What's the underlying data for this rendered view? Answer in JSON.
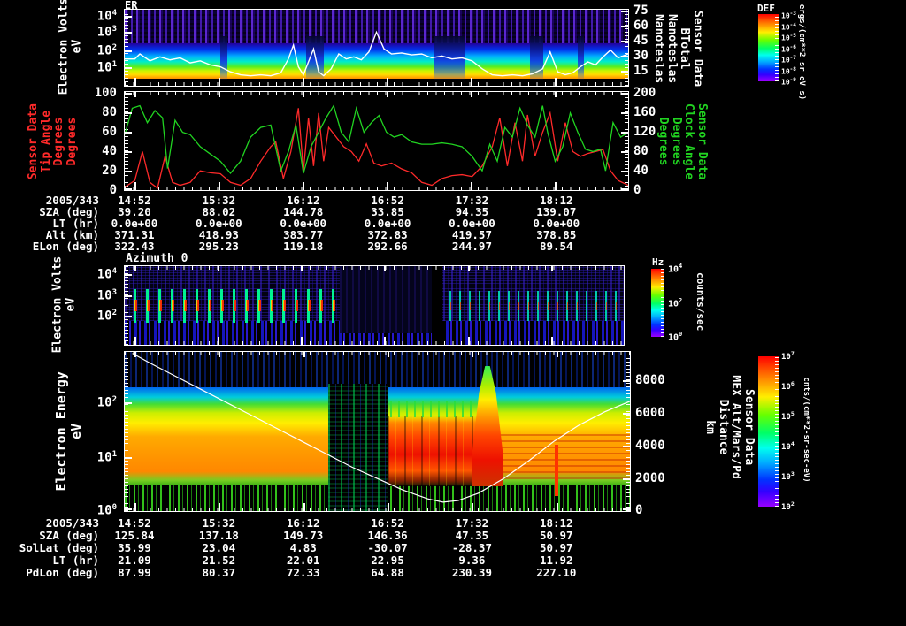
{
  "header": {
    "title": "ER"
  },
  "colors": {
    "accent_red": "#ff2a2a",
    "accent_green": "#21d421",
    "white": "#ffffff"
  },
  "panel1": {
    "ylabel_lines": [
      "Electron Volts",
      "eV"
    ],
    "yticks": [
      {
        "m": "10",
        "e": "4"
      },
      {
        "m": "10",
        "e": "3"
      },
      {
        "m": "10",
        "e": "2"
      },
      {
        "m": "10",
        "e": "1"
      }
    ],
    "right_ticks": [
      "75",
      "60",
      "45",
      "30",
      "15"
    ],
    "right_label_lines": [
      "Sensor Data",
      "BTotal",
      "Nanoteslas",
      "Nanoteslas"
    ],
    "colorbar": {
      "title": "DEF",
      "ticks": [
        {
          "m": "10",
          "e": "-3"
        },
        {
          "m": "10",
          "e": "-4"
        },
        {
          "m": "10",
          "e": "-5"
        },
        {
          "m": "10",
          "e": "-6"
        },
        {
          "m": "10",
          "e": "-7"
        },
        {
          "m": "10",
          "e": "-8"
        },
        {
          "m": "10",
          "e": "-9"
        }
      ],
      "unit": "ergs/(cm**2 sr eV s)"
    }
  },
  "panel2": {
    "left_ticks": [
      "100",
      "80",
      "60",
      "40",
      "20",
      "0"
    ],
    "left_label_lines": [
      "Sensor Data",
      "Tip Angle",
      "Degrees",
      "Degrees"
    ],
    "right_ticks": [
      "200",
      "160",
      "120",
      "80",
      "40",
      "0"
    ],
    "right_label_lines": [
      "Sensor Data",
      "Clock Angle",
      "Degrees",
      "Degrees"
    ]
  },
  "annotation1": {
    "date": "2005/343",
    "times": [
      "14:52",
      "15:32",
      "16:12",
      "16:52",
      "17:32",
      "18:12"
    ],
    "rows": [
      {
        "label": "SZA (deg)",
        "values": [
          "39.20",
          "88.02",
          "144.78",
          "33.85",
          "94.35",
          "139.07"
        ]
      },
      {
        "label": "LT (hr)",
        "values": [
          "0.0e+00",
          "0.0e+00",
          "0.0e+00",
          "0.0e+00",
          "0.0e+00",
          "0.0e+00"
        ]
      },
      {
        "label": "Alt (km)",
        "values": [
          "371.31",
          "418.93",
          "383.77",
          "372.83",
          "419.57",
          "378.85"
        ]
      },
      {
        "label": "ELon (deg)",
        "values": [
          "322.43",
          "295.23",
          "119.18",
          "292.66",
          "244.97",
          "89.54"
        ]
      }
    ]
  },
  "panel3": {
    "title": "Azimuth 0",
    "ylabel_lines": [
      "Electron Volts",
      "eV"
    ],
    "yticks": [
      {
        "m": "10",
        "e": "4"
      },
      {
        "m": "10",
        "e": "3"
      },
      {
        "m": "10",
        "e": "2"
      }
    ],
    "colorbar": {
      "title": "Hz",
      "ticks": [
        {
          "m": "10",
          "e": "4"
        },
        {
          "m": "10",
          "e": "2"
        },
        {
          "m": "10",
          "e": "0"
        }
      ],
      "unit": "counts/sec"
    }
  },
  "panel4": {
    "ylabel_lines": [
      "Electron Energy",
      "eV"
    ],
    "yticks": [
      {
        "m": "10",
        "e": "2"
      },
      {
        "m": "10",
        "e": "1"
      },
      {
        "m": "10",
        "e": "0"
      }
    ],
    "right_ticks": [
      "8000",
      "6000",
      "4000",
      "2000",
      "0"
    ],
    "right_label_lines": [
      "Sensor Data",
      "MEX Alt/Mars/Pd",
      "Distance",
      "km"
    ],
    "colorbar": {
      "ticks": [
        {
          "m": "10",
          "e": "7"
        },
        {
          "m": "10",
          "e": "6"
        },
        {
          "m": "10",
          "e": "5"
        },
        {
          "m": "10",
          "e": "4"
        },
        {
          "m": "10",
          "e": "3"
        },
        {
          "m": "10",
          "e": "2"
        }
      ],
      "unit": "cnts/(cm**2-sr-sec-eV)"
    }
  },
  "annotation2": {
    "date": "2005/343",
    "times": [
      "14:52",
      "15:32",
      "16:12",
      "16:52",
      "17:32",
      "18:12"
    ],
    "rows": [
      {
        "label": "SZA (deg)",
        "values": [
          "125.84",
          "137.18",
          "149.73",
          "146.36",
          "47.35",
          "50.97"
        ]
      },
      {
        "label": "SolLat (deg)",
        "values": [
          "35.99",
          "23.04",
          "4.83",
          "-30.07",
          "-28.37",
          "50.97"
        ]
      },
      {
        "label": "LT (hr)",
        "values": [
          "21.09",
          "21.52",
          "22.01",
          "22.95",
          "9.36",
          "11.92"
        ]
      },
      {
        "label": "PdLon (deg)",
        "values": [
          "87.99",
          "80.37",
          "72.33",
          "64.88",
          "230.39",
          "227.10"
        ]
      }
    ]
  },
  "chart_data": [
    {
      "type": "heatmap",
      "title": "ER",
      "ylabel": "Electron Volts eV",
      "yscale": "log",
      "ylim": [
        10,
        10000
      ],
      "xticklabels": [
        "14:52",
        "15:32",
        "16:12",
        "16:52",
        "17:32",
        "18:12"
      ],
      "right_axis": {
        "label": "Sensor Data BTotal Nanoteslas",
        "range": [
          0,
          75
        ],
        "ticks": [
          15,
          30,
          45,
          60,
          75
        ]
      },
      "colorbar": {
        "title": "DEF",
        "unit": "ergs/(cm**2 sr eV s)",
        "range": [
          "1e-9",
          "1e-3"
        ]
      },
      "description": "Purple noise speckle 300-10000 eV; smooth cyan-green-yellow-orange flux bands 10-200 eV; black below 10 eV; blue dropouts near 16:20, 17:20, 18:05",
      "overlay": {
        "name": "BTotal (nT)",
        "color": "#ffffff",
        "x": [
          0,
          0.02,
          0.03,
          0.05,
          0.07,
          0.09,
          0.11,
          0.13,
          0.15,
          0.17,
          0.19,
          0.21,
          0.23,
          0.25,
          0.27,
          0.29,
          0.31,
          0.325,
          0.335,
          0.345,
          0.355,
          0.365,
          0.375,
          0.385,
          0.395,
          0.41,
          0.425,
          0.44,
          0.455,
          0.47,
          0.485,
          0.5,
          0.515,
          0.53,
          0.55,
          0.57,
          0.59,
          0.61,
          0.63,
          0.65,
          0.67,
          0.69,
          0.71,
          0.73,
          0.75,
          0.77,
          0.79,
          0.81,
          0.83,
          0.845,
          0.86,
          0.875,
          0.89,
          0.905,
          0.92,
          0.935,
          0.95,
          0.965,
          0.98,
          1
        ],
        "values": [
          28,
          28,
          33,
          26,
          30,
          27,
          29,
          24,
          26,
          22,
          20,
          15,
          12,
          11,
          12,
          11,
          14,
          28,
          42,
          20,
          12,
          25,
          38,
          15,
          11,
          18,
          33,
          28,
          30,
          27,
          35,
          55,
          38,
          33,
          34,
          32,
          33,
          29,
          31,
          28,
          29,
          26,
          18,
          12,
          11,
          12,
          11,
          13,
          18,
          35,
          15,
          12,
          14,
          20,
          25,
          22,
          30,
          37,
          29,
          33
        ]
      }
    },
    {
      "type": "line",
      "xticklabels": [
        "14:52",
        "15:32",
        "16:12",
        "16:52",
        "17:32",
        "18:12"
      ],
      "series": [
        {
          "name": "Sensor Data Tip Angle (Degrees)",
          "color": "#ff2a2a",
          "axis_range": [
            0,
            100
          ],
          "x": [
            0,
            0.02,
            0.035,
            0.05,
            0.065,
            0.08,
            0.095,
            0.11,
            0.13,
            0.15,
            0.17,
            0.19,
            0.21,
            0.23,
            0.25,
            0.27,
            0.29,
            0.3,
            0.315,
            0.33,
            0.345,
            0.355,
            0.365,
            0.375,
            0.385,
            0.395,
            0.405,
            0.42,
            0.435,
            0.45,
            0.465,
            0.48,
            0.495,
            0.51,
            0.53,
            0.55,
            0.57,
            0.59,
            0.61,
            0.63,
            0.65,
            0.67,
            0.69,
            0.71,
            0.73,
            0.745,
            0.76,
            0.775,
            0.79,
            0.8,
            0.815,
            0.83,
            0.845,
            0.86,
            0.875,
            0.89,
            0.905,
            0.92,
            0.935,
            0.95,
            0.965,
            0.98,
            1
          ],
          "values": [
            3,
            10,
            40,
            8,
            2,
            35,
            8,
            5,
            8,
            20,
            18,
            17,
            8,
            5,
            12,
            30,
            45,
            50,
            12,
            40,
            85,
            20,
            75,
            25,
            80,
            30,
            65,
            55,
            45,
            40,
            30,
            48,
            28,
            25,
            28,
            22,
            18,
            8,
            5,
            12,
            15,
            16,
            14,
            25,
            45,
            75,
            25,
            70,
            30,
            78,
            35,
            60,
            80,
            30,
            70,
            40,
            35,
            38,
            40,
            42,
            20,
            10,
            5
          ]
        },
        {
          "name": "Sensor Data Clock Angle (Degrees)",
          "color": "#21d421",
          "axis_range": [
            0,
            200
          ],
          "x": [
            0,
            0.015,
            0.03,
            0.045,
            0.06,
            0.075,
            0.085,
            0.1,
            0.115,
            0.13,
            0.15,
            0.17,
            0.19,
            0.21,
            0.23,
            0.25,
            0.27,
            0.29,
            0.31,
            0.325,
            0.34,
            0.355,
            0.37,
            0.385,
            0.4,
            0.415,
            0.43,
            0.445,
            0.46,
            0.475,
            0.49,
            0.505,
            0.52,
            0.535,
            0.55,
            0.57,
            0.59,
            0.61,
            0.63,
            0.65,
            0.67,
            0.69,
            0.71,
            0.725,
            0.74,
            0.755,
            0.77,
            0.785,
            0.8,
            0.815,
            0.83,
            0.84,
            0.855,
            0.87,
            0.885,
            0.9,
            0.915,
            0.93,
            0.945,
            0.955,
            0.97,
            0.985,
            1
          ],
          "values": [
            115,
            170,
            175,
            140,
            165,
            150,
            45,
            145,
            120,
            115,
            90,
            75,
            60,
            35,
            60,
            110,
            130,
            135,
            40,
            80,
            135,
            35,
            90,
            120,
            150,
            175,
            120,
            100,
            170,
            120,
            140,
            155,
            120,
            110,
            115,
            100,
            95,
            95,
            98,
            95,
            90,
            70,
            40,
            95,
            60,
            130,
            110,
            170,
            135,
            110,
            175,
            120,
            60,
            90,
            160,
            120,
            85,
            80,
            85,
            40,
            140,
            110,
            120
          ]
        }
      ]
    },
    {
      "type": "heatmap",
      "title": "Azimuth 0",
      "ylabel": "Electron Volts eV",
      "yscale": "log",
      "ylim": [
        50,
        15000
      ],
      "xticklabels": [
        "14:52",
        "15:32",
        "16:12",
        "16:52",
        "17:32",
        "18:12"
      ],
      "colorbar": {
        "title": "Hz",
        "unit": "counts/sec",
        "range": [
          1,
          10000
        ]
      },
      "description": "Indigo/blue speckle background; periodic bright green streaks with red cores near 1 keV every ~4 min; dark data block mid-interval ~16:35-17:15; vertical blue stripes below 100 eV"
    },
    {
      "type": "heatmap",
      "ylabel": "Electron Energy eV",
      "yscale": "log",
      "ylim": [
        1,
        800
      ],
      "xticklabels": [
        "14:52",
        "15:32",
        "16:12",
        "16:52",
        "17:32",
        "18:12"
      ],
      "right_axis": {
        "label": "Sensor Data MEX Alt/Mars/Pd Distance km",
        "range": [
          0,
          9800
        ],
        "ticks": [
          0,
          2000,
          4000,
          6000,
          8000
        ]
      },
      "colorbar": {
        "unit": "cnts/(cm**2-sr-sec-eV)",
        "range": [
          "1e2",
          "1e7"
        ]
      },
      "description": "Intense yellow-orange flux 3-50 eV with green/cyan above and blue speckle at high energy; dropout near 16:40; saturated red region 16:55-17:30; red plume to ~200 eV near 17:35; green speckle noise floor below 3 eV",
      "overlay": {
        "name": "MEX altitude (km)",
        "color": "#ffffff",
        "x": [
          0.015,
          0.05,
          0.1,
          0.15,
          0.2,
          0.25,
          0.3,
          0.35,
          0.4,
          0.45,
          0.5,
          0.55,
          0.6,
          0.63,
          0.66,
          0.7,
          0.75,
          0.8,
          0.85,
          0.9,
          0.95,
          1
        ],
        "values": [
          9700,
          9100,
          8300,
          7500,
          6700,
          5900,
          5100,
          4300,
          3500,
          2700,
          2000,
          1300,
          750,
          550,
          650,
          1100,
          2000,
          3100,
          4300,
          5300,
          6100,
          6750
        ]
      }
    }
  ]
}
